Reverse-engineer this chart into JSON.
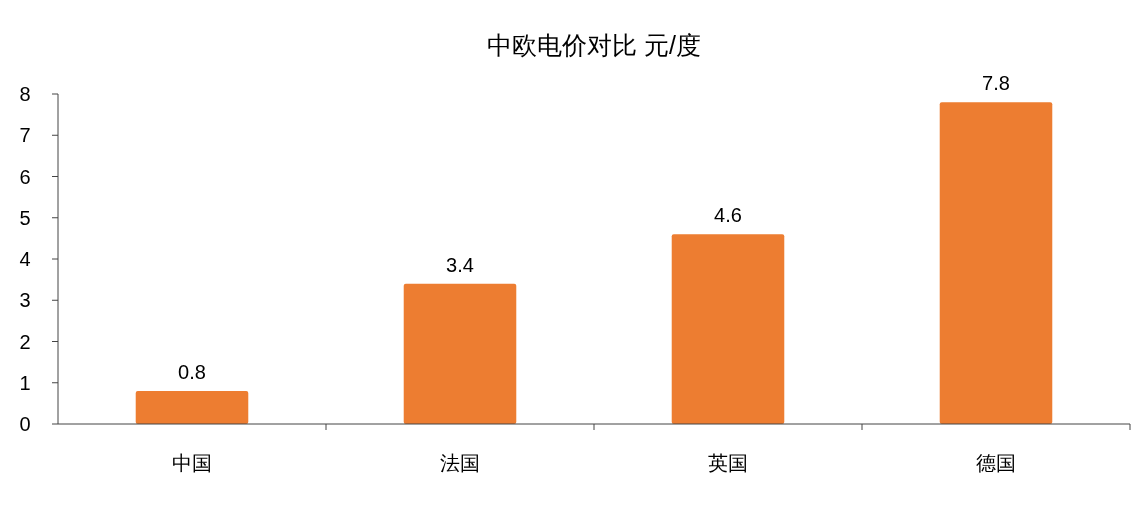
{
  "chart_data": {
    "type": "bar",
    "title": "中欧电价对比 元/度",
    "categories": [
      "中国",
      "法国",
      "英国",
      "德国"
    ],
    "values": [
      0.8,
      3.4,
      4.6,
      7.8
    ],
    "color": "#ed7d31",
    "ylim": [
      0,
      8
    ],
    "yticks": [
      0,
      1,
      2,
      3,
      4,
      5,
      6,
      7,
      8
    ],
    "data_labels": true,
    "grid": false
  }
}
